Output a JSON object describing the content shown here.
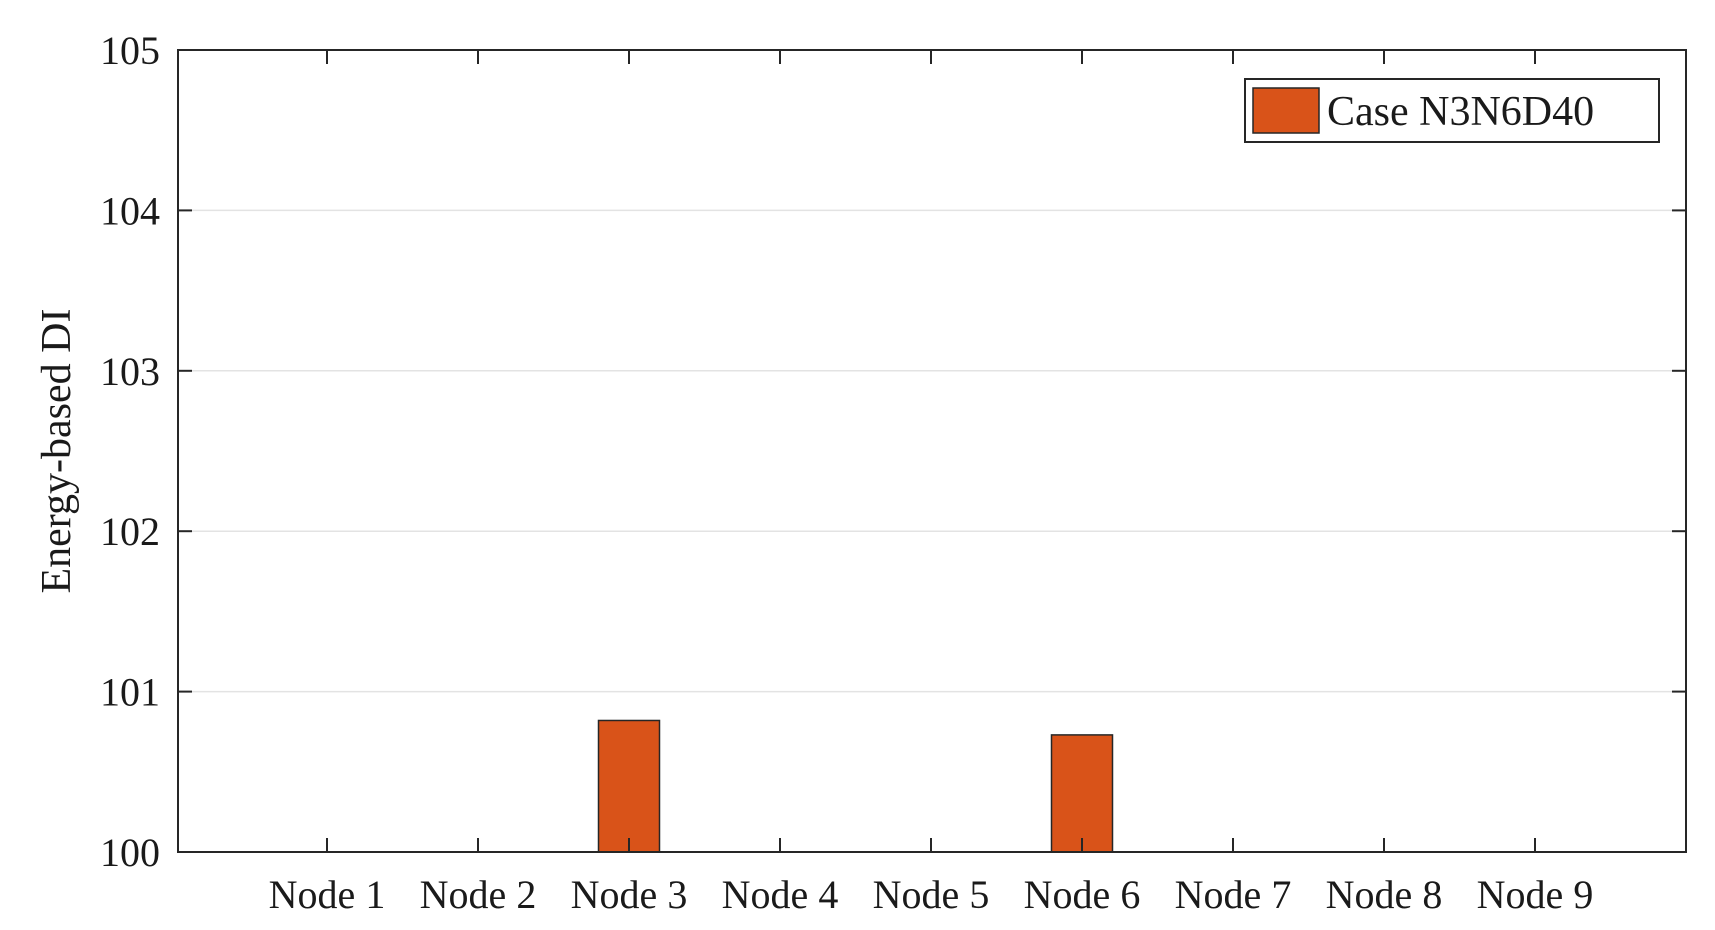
{
  "chart_data": {
    "type": "bar",
    "title": "",
    "xlabel": "",
    "ylabel": "Energy-based DI",
    "categories": [
      "Node 1",
      "Node 2",
      "Node 3",
      "Node 4",
      "Node 5",
      "Node 6",
      "Node 7",
      "Node 8",
      "Node 9"
    ],
    "series": [
      {
        "name": "Case N3N6D40",
        "color": "#d95319",
        "values": [
          100,
          100,
          100.82,
          100,
          100,
          100.73,
          100,
          100,
          100
        ]
      }
    ],
    "ylim": [
      100,
      105
    ],
    "yticks": [
      "100",
      "101",
      "102",
      "103",
      "104",
      "105"
    ],
    "grid": "horizontal",
    "legend_position": "top-right"
  }
}
